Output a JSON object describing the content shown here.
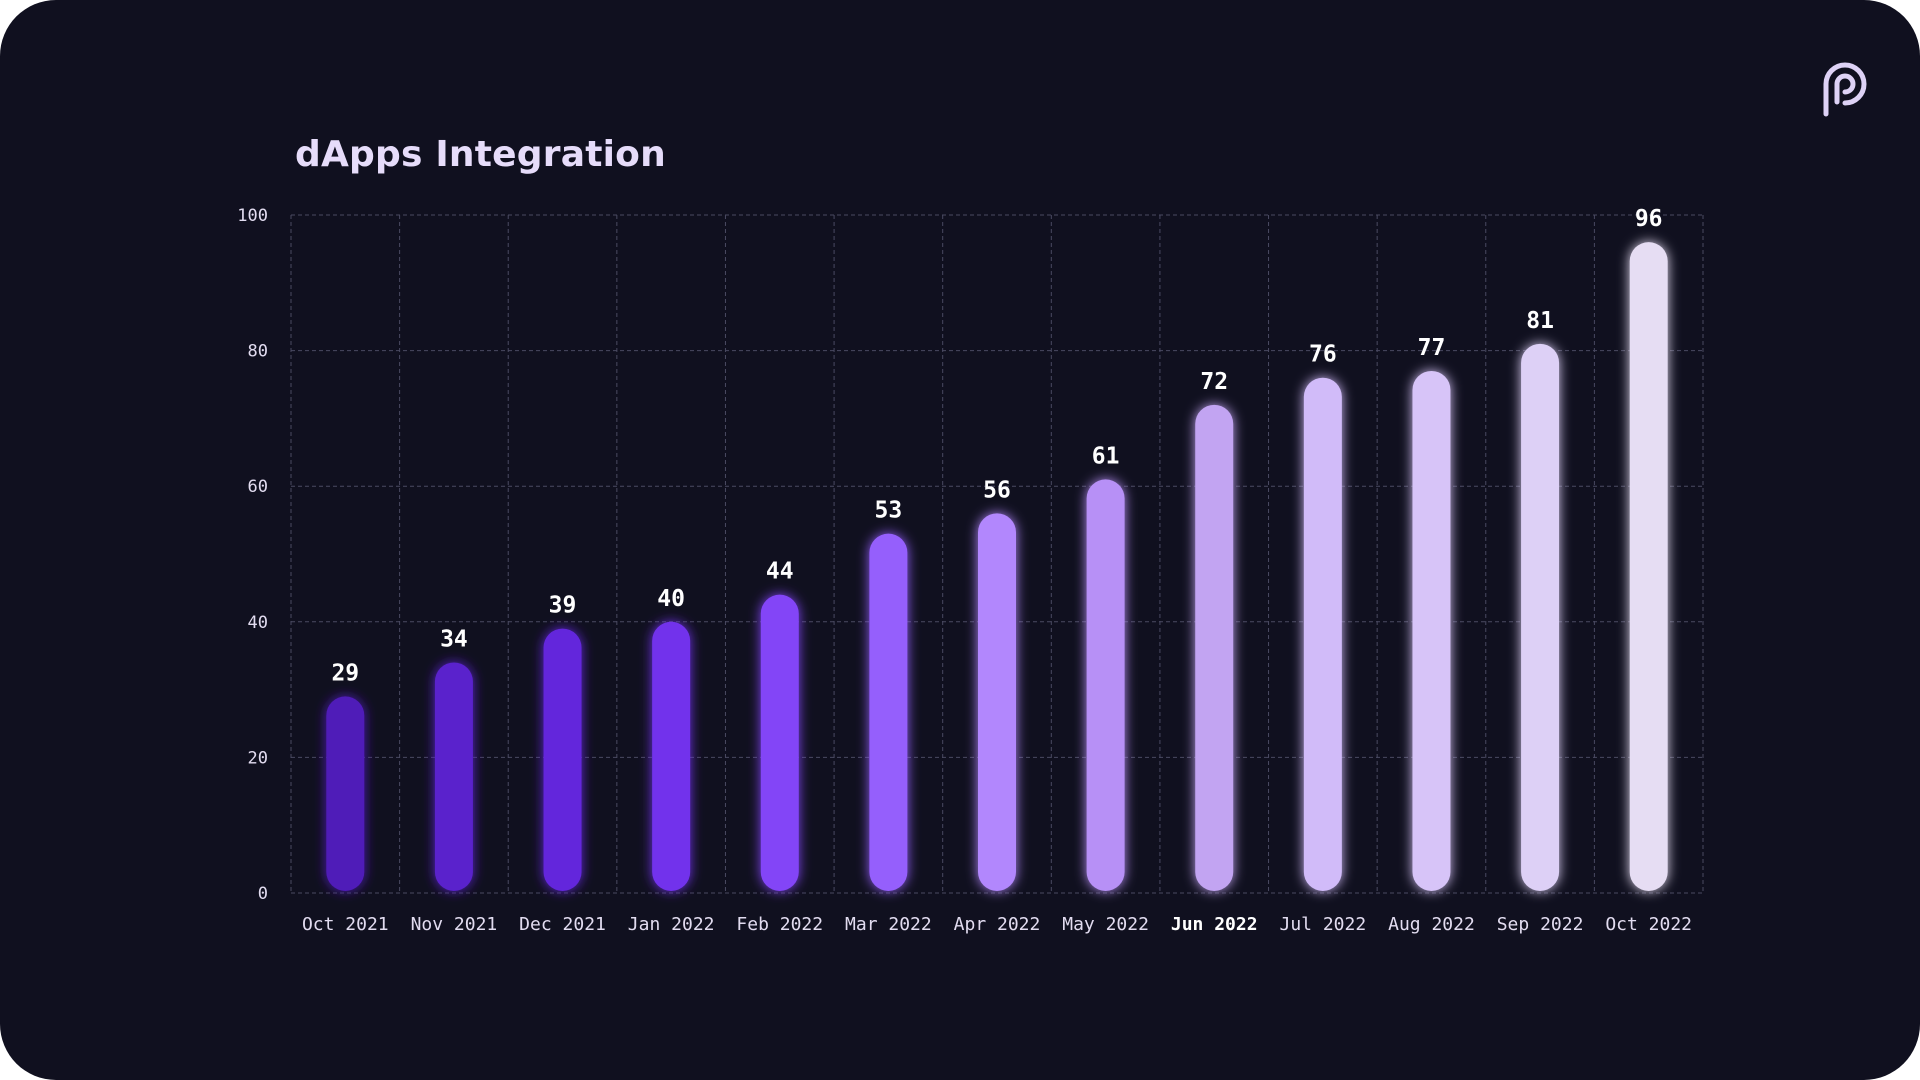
{
  "colors": {
    "background": "#10101f",
    "grid": "#4a4a62",
    "text": "#e2dcf0",
    "title": "#e6dcfa"
  },
  "logo": {
    "icon": "pyth-logo-icon"
  },
  "chart_data": {
    "type": "bar",
    "title": "dApps Integration",
    "xlabel": "",
    "ylabel": "",
    "categories": [
      "Oct 2021",
      "Nov 2021",
      "Dec 2021",
      "Jan 2022",
      "Feb 2022",
      "Mar 2022",
      "Apr 2022",
      "May 2022",
      "Jun 2022",
      "Jul 2022",
      "Aug 2022",
      "Sep 2022",
      "Oct 2022"
    ],
    "values": [
      29,
      34,
      39,
      40,
      44,
      53,
      56,
      61,
      72,
      76,
      77,
      81,
      96
    ],
    "bar_colors": [
      "#4f1ab8",
      "#5a20cc",
      "#6428dc",
      "#7232ec",
      "#8344f7",
      "#955ffc",
      "#b287fd",
      "#b790f6",
      "#c2a4f2",
      "#d1bbf9",
      "#d7c4f8",
      "#ddd0f6",
      "#e6ddf3"
    ],
    "highlighted_category": "Jun 2022",
    "ylim": [
      0,
      100
    ],
    "yticks": [
      0,
      20,
      40,
      60,
      80,
      100
    ],
    "grid": true,
    "grid_style": "dashed",
    "legend": "none",
    "data_labels": true
  }
}
